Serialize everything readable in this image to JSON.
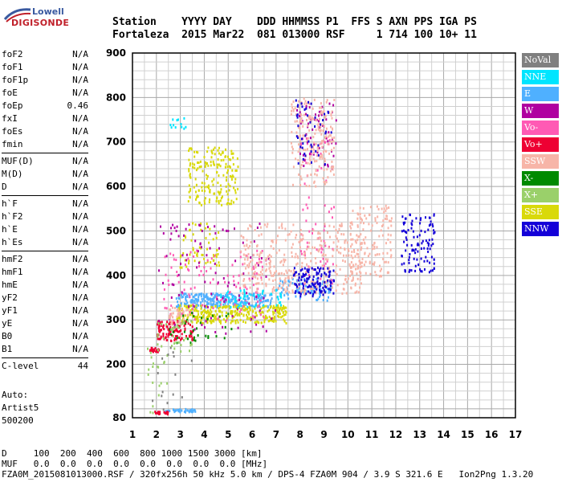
{
  "logo": {
    "line1": "Lowell",
    "line2": "DIGISONDE"
  },
  "header": {
    "line1": "Station    YYYY DAY    DDD HHMMSS P1  FFS S AXN PPS IGA PS",
    "line2": "Fortaleza  2015 Mar22  081 013000 RSF     1 714 100 10+ 11"
  },
  "scaled": {
    "group1": [
      {
        "name": "foF2",
        "value": "N/A"
      },
      {
        "name": "foF1",
        "value": "N/A"
      },
      {
        "name": "foF1p",
        "value": "N/A"
      },
      {
        "name": "foE",
        "value": "N/A"
      },
      {
        "name": "foEp",
        "value": "0.46"
      },
      {
        "name": "fxI",
        "value": "N/A"
      },
      {
        "name": "foEs",
        "value": "N/A"
      },
      {
        "name": "fmin",
        "value": "N/A"
      }
    ],
    "group2": [
      {
        "name": "MUF(D)",
        "value": "N/A"
      },
      {
        "name": "M(D)",
        "value": "N/A"
      },
      {
        "name": "D",
        "value": "N/A"
      }
    ],
    "group3": [
      {
        "name": "h`F",
        "value": "N/A"
      },
      {
        "name": "h`F2",
        "value": "N/A"
      },
      {
        "name": "h`E",
        "value": "N/A"
      },
      {
        "name": "h`Es",
        "value": "N/A"
      }
    ],
    "group4": [
      {
        "name": "hmF2",
        "value": "N/A"
      },
      {
        "name": "hmF1",
        "value": "N/A"
      },
      {
        "name": "hmE",
        "value": "N/A"
      },
      {
        "name": "yF2",
        "value": "N/A"
      },
      {
        "name": "yF1",
        "value": "N/A"
      },
      {
        "name": "yE",
        "value": "N/A"
      },
      {
        "name": "B0",
        "value": "N/A"
      },
      {
        "name": "B1",
        "value": "N/A"
      }
    ],
    "group5": [
      {
        "name": "C-level",
        "value": "44"
      }
    ]
  },
  "info": {
    "line1": "Auto:",
    "line2": "Artist5",
    "line3": "500200"
  },
  "footer": {
    "d_row": "D     100  200  400  600  800 1000 1500 3000 [km]",
    "muf_row": "MUF   0.0  0.0  0.0  0.0  0.0  0.0  0.0  0.0 [MHz]",
    "file_row": "FZA0M_2015081013000.RSF / 320fx256h 50 kHz 5.0 km / DPS-4 FZA0M 904 / 3.9 S 321.6 E   Ion2Png 1.3.20"
  },
  "legend": [
    {
      "label": "NoVal",
      "color": "#808080"
    },
    {
      "label": "NNE",
      "color": "#00e5ff"
    },
    {
      "label": "E",
      "color": "#4fb0ff"
    },
    {
      "label": "W",
      "color": "#b000a0"
    },
    {
      "label": "Vo-",
      "color": "#ff5ab4"
    },
    {
      "label": "Vo+",
      "color": "#ee0033"
    },
    {
      "label": "SSW",
      "color": "#f7b5a8"
    },
    {
      "label": "X-",
      "color": "#008a00"
    },
    {
      "label": "X+",
      "color": "#9ad06a"
    },
    {
      "label": "SSE",
      "color": "#d9d90a"
    },
    {
      "label": "NNW",
      "color": "#1400d8"
    }
  ],
  "chart_data": {
    "type": "scatter",
    "xlim": [
      1,
      17
    ],
    "ylim": [
      80,
      900
    ],
    "xticks": [
      1,
      2,
      3,
      4,
      5,
      6,
      7,
      8,
      9,
      10,
      11,
      12,
      13,
      14,
      15,
      16,
      17
    ],
    "yticks": [
      80,
      200,
      300,
      400,
      500,
      600,
      700,
      800,
      900
    ],
    "grid": true,
    "legend_position": "right",
    "clusters": [
      {
        "name": "E",
        "x": [
          2.8,
          6.8
        ],
        "y": [
          330,
          362
        ],
        "n": 260
      },
      {
        "name": "E",
        "x": [
          7,
          9.3
        ],
        "y": [
          345,
          395
        ],
        "n": 90
      },
      {
        "name": "E",
        "x": [
          2.3,
          3.6
        ],
        "y": [
          95,
          102
        ],
        "n": 40
      },
      {
        "name": "SSE",
        "x": [
          2.8,
          7.4
        ],
        "y": [
          295,
          335
        ],
        "n": 320
      },
      {
        "name": "SSE",
        "x": [
          3.3,
          5.4
        ],
        "y": [
          560,
          690
        ],
        "n": 180
      },
      {
        "name": "SSE",
        "x": [
          2.9,
          4.6
        ],
        "y": [
          420,
          520
        ],
        "n": 60
      },
      {
        "name": "Vo+",
        "x": [
          2,
          3.5
        ],
        "y": [
          255,
          300
        ],
        "n": 120
      },
      {
        "name": "Vo+",
        "x": [
          1.7,
          2.1
        ],
        "y": [
          230,
          240
        ],
        "n": 25
      },
      {
        "name": "Vo+",
        "x": [
          1.8,
          2.5
        ],
        "y": [
          90,
          96
        ],
        "n": 20
      },
      {
        "name": "Vo-",
        "x": [
          2.2,
          6.5
        ],
        "y": [
          300,
          460
        ],
        "n": 110
      },
      {
        "name": "Vo-",
        "x": [
          8,
          9.4
        ],
        "y": [
          380,
          720
        ],
        "n": 70
      },
      {
        "name": "W",
        "x": [
          2,
          7
        ],
        "y": [
          270,
          520
        ],
        "n": 110
      },
      {
        "name": "W",
        "x": [
          7.8,
          9.5
        ],
        "y": [
          640,
          790
        ],
        "n": 60
      },
      {
        "name": "SSW",
        "x": [
          5.5,
          10.6
        ],
        "y": [
          360,
          520
        ],
        "n": 380
      },
      {
        "name": "SSW",
        "x": [
          7.6,
          9.4
        ],
        "y": [
          600,
          800
        ],
        "n": 200
      },
      {
        "name": "SSW",
        "x": [
          10,
          11.8
        ],
        "y": [
          400,
          560
        ],
        "n": 140
      },
      {
        "name": "SSW",
        "x": [
          2.5,
          3.3
        ],
        "y": [
          290,
          330
        ],
        "n": 40
      },
      {
        "name": "NNW",
        "x": [
          7.7,
          9.4
        ],
        "y": [
          355,
          420
        ],
        "n": 120
      },
      {
        "name": "NNW",
        "x": [
          12.2,
          13.6
        ],
        "y": [
          410,
          540
        ],
        "n": 110
      },
      {
        "name": "NNW",
        "x": [
          7.8,
          9.3
        ],
        "y": [
          650,
          800
        ],
        "n": 45
      },
      {
        "name": "NNE",
        "x": [
          4.6,
          7.2
        ],
        "y": [
          330,
          370
        ],
        "n": 50
      },
      {
        "name": "NNE",
        "x": [
          2.5,
          3.2
        ],
        "y": [
          730,
          760
        ],
        "n": 12
      },
      {
        "name": "X-",
        "x": [
          2.2,
          5.2
        ],
        "y": [
          250,
          320
        ],
        "n": 35
      },
      {
        "name": "X+",
        "x": [
          2,
          3.5
        ],
        "y": [
          230,
          300
        ],
        "n": 35
      },
      {
        "name": "X+",
        "x": [
          1.6,
          2.5
        ],
        "y": [
          90,
          240
        ],
        "n": 20
      },
      {
        "name": "NoVal",
        "x": [
          1.7,
          3.5
        ],
        "y": [
          90,
          240
        ],
        "n": 15
      }
    ]
  }
}
